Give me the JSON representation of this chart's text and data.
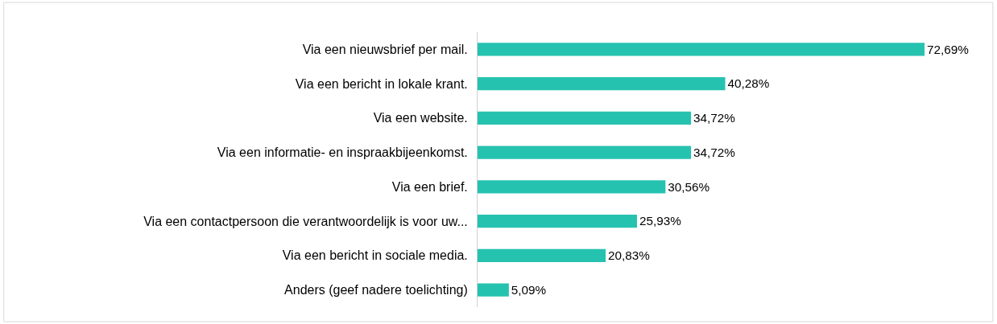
{
  "chart_data": {
    "type": "bar",
    "orientation": "horizontal",
    "categories": [
      "Via een nieuwsbrief per mail.",
      "Via een bericht in lokale krant.",
      "Via een website.",
      "Via een informatie- en inspraakbijeenkomst.",
      "Via een brief.",
      "Via een contactpersoon die verantwoordelijk is voor uw...",
      "Via een bericht in sociale media.",
      "Anders (geef nadere toelichting)"
    ],
    "values": [
      72.69,
      40.28,
      34.72,
      34.72,
      30.56,
      25.93,
      20.83,
      5.09
    ],
    "value_labels": [
      "72,69%",
      "40,28%",
      "34,72%",
      "34,72%",
      "30,56%",
      "25,93%",
      "20,83%",
      "5,09%"
    ],
    "color": "#26c2b0"
  }
}
